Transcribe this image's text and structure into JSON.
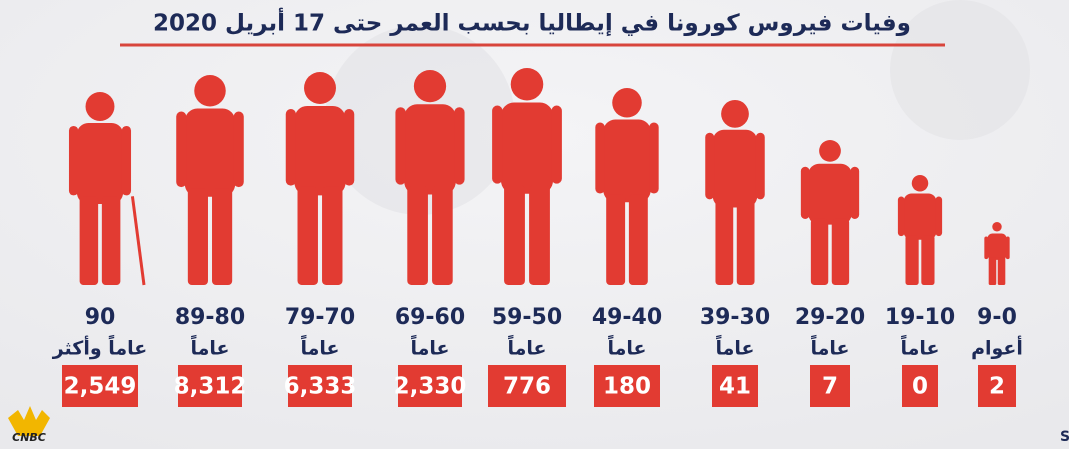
{
  "chart_data": {
    "type": "pictogram",
    "title": "وفيات فيروس كورونا في إيطاليا بحسب العمر حتى 17 أبريل 2020",
    "categories": [
      "90",
      "89-80",
      "79-70",
      "69-60",
      "59-50",
      "49-40",
      "39-30",
      "29-20",
      "19-10",
      "9-0"
    ],
    "category_units": [
      "عاماً وأكثر",
      "عاماً",
      "عاماً",
      "عاماً",
      "عاماً",
      "عاماً",
      "عاماً",
      "عاماً",
      "عاماً",
      "أعوام"
    ],
    "values": [
      2549,
      8312,
      6333,
      2330,
      776,
      180,
      41,
      7,
      0,
      2
    ],
    "value_labels": [
      "2,549",
      "8,312",
      "6,333",
      "2,330",
      "776",
      "180",
      "41",
      "7",
      "0",
      "2"
    ],
    "color": "#e23b32",
    "source": "المصدر: Statista",
    "logo": "CNBC"
  }
}
